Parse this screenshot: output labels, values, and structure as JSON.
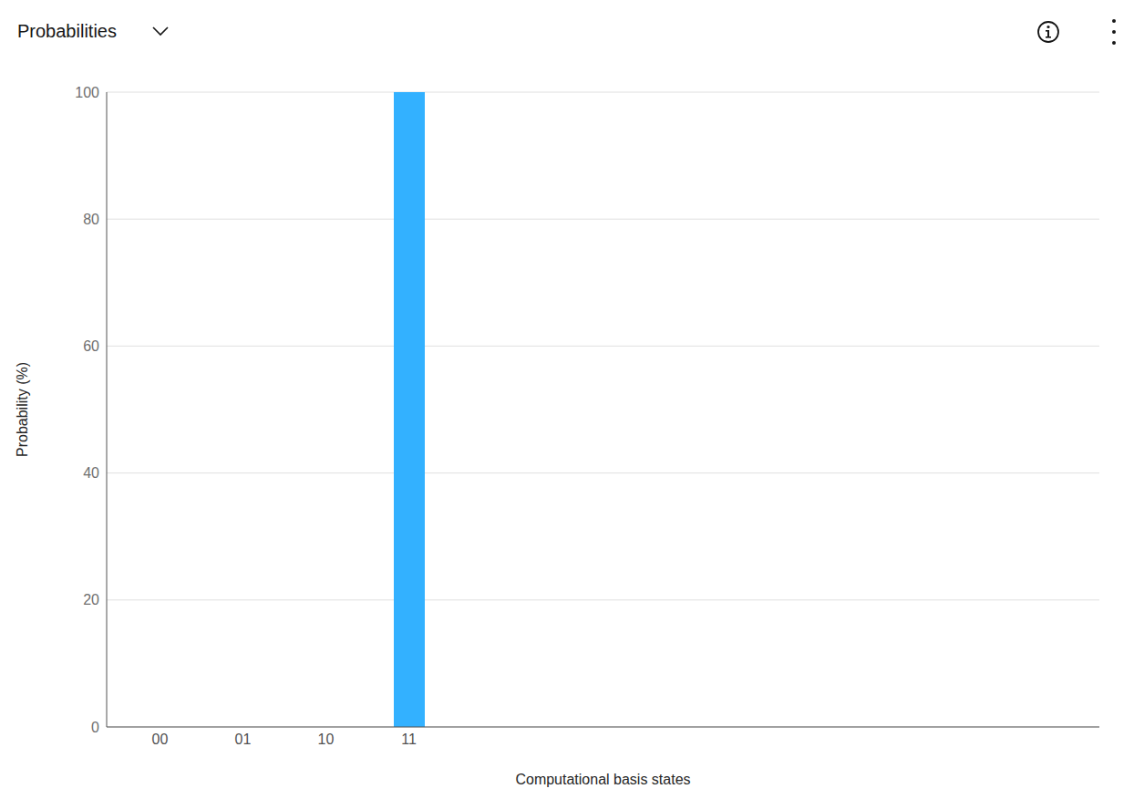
{
  "chart_data": {
    "type": "bar",
    "title": "Probabilities",
    "x_label": "Computational basis states",
    "y_label": "Probability (%)",
    "categories": [
      "00",
      "01",
      "10",
      "11"
    ],
    "values": [
      0,
      0,
      0,
      100
    ],
    "color": "#33b1ff",
    "ylim": [
      0,
      100
    ],
    "yticks": [
      0,
      20,
      40,
      60,
      80,
      100
    ],
    "grid": true
  }
}
